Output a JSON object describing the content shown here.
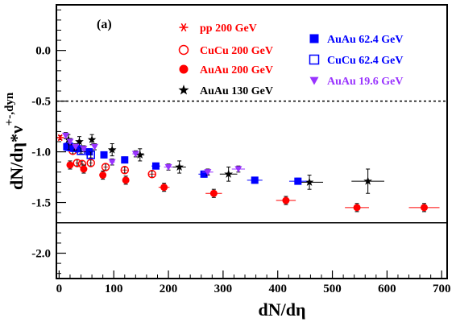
{
  "chart_data": {
    "type": "scatter",
    "panel_label": "(a)",
    "xlabel": "dN/dη",
    "ylabel_main": "dN/dη*ν",
    "ylabel_sub": "+-,dyn",
    "xlim": [
      -5,
      710
    ],
    "ylim": [
      -2.25,
      0.45
    ],
    "x_ticks": [
      0,
      100,
      200,
      300,
      400,
      500,
      600,
      700
    ],
    "x_tick_labels": [
      "0",
      "100",
      "200",
      "300",
      "400",
      "500",
      "600",
      "700"
    ],
    "y_ticks": [
      -2.0,
      -1.5,
      -1.0,
      -0.5,
      0.0
    ],
    "y_tick_labels": [
      "-2.0",
      "-1.5",
      "-1.0",
      "-0.5",
      "0.0"
    ],
    "reference_lines": [
      {
        "y": -0.5,
        "style": "dashed",
        "color": "#000000"
      },
      {
        "y": -1.7,
        "style": "solid",
        "color": "#000000"
      }
    ],
    "series": [
      {
        "name": "pp 200 GeV",
        "marker": "asterisk",
        "color": "#ff0000",
        "points": [
          {
            "x": 2,
            "y": -0.86,
            "ex": 0,
            "ey": 0.02
          }
        ]
      },
      {
        "name": "CuCu 200 GeV",
        "marker": "open-circle",
        "color": "#ff0000",
        "points": [
          {
            "x": 25,
            "y": -0.99,
            "ex": 3,
            "ey": 0.03
          },
          {
            "x": 33,
            "y": -1.11,
            "ex": 3,
            "ey": 0.03
          },
          {
            "x": 42,
            "y": -1.12,
            "ex": 3,
            "ey": 0.03
          },
          {
            "x": 58,
            "y": -1.11,
            "ex": 3,
            "ey": 0.03
          },
          {
            "x": 85,
            "y": -1.15,
            "ex": 4,
            "ey": 0.03
          },
          {
            "x": 120,
            "y": -1.18,
            "ex": 5,
            "ey": 0.03
          },
          {
            "x": 170,
            "y": -1.22,
            "ex": 6,
            "ey": 0.03
          }
        ]
      },
      {
        "name": "AuAu 200 GeV",
        "marker": "filled-circle",
        "color": "#ff0000",
        "points": [
          {
            "x": 20,
            "y": -1.13,
            "ex": 5,
            "ey": 0.04
          },
          {
            "x": 45,
            "y": -1.17,
            "ex": 5,
            "ey": 0.04
          },
          {
            "x": 80,
            "y": -1.23,
            "ex": 6,
            "ey": 0.04
          },
          {
            "x": 122,
            "y": -1.28,
            "ex": 6,
            "ey": 0.04
          },
          {
            "x": 192,
            "y": -1.35,
            "ex": 10,
            "ey": 0.04
          },
          {
            "x": 283,
            "y": -1.41,
            "ex": 15,
            "ey": 0.04
          },
          {
            "x": 415,
            "y": -1.48,
            "ex": 18,
            "ey": 0.04
          },
          {
            "x": 545,
            "y": -1.55,
            "ex": 22,
            "ey": 0.04
          },
          {
            "x": 668,
            "y": -1.55,
            "ex": 28,
            "ey": 0.04
          }
        ]
      },
      {
        "name": "AuAu 130 GeV",
        "marker": "star",
        "color": "#000000",
        "points": [
          {
            "x": 17,
            "y": -0.88,
            "ex": 4,
            "ey": 0.05
          },
          {
            "x": 37,
            "y": -0.9,
            "ex": 5,
            "ey": 0.05
          },
          {
            "x": 60,
            "y": -0.88,
            "ex": 5,
            "ey": 0.05
          },
          {
            "x": 97,
            "y": -0.98,
            "ex": 6,
            "ey": 0.06
          },
          {
            "x": 148,
            "y": -1.03,
            "ex": 8,
            "ey": 0.06
          },
          {
            "x": 220,
            "y": -1.15,
            "ex": 12,
            "ey": 0.06
          },
          {
            "x": 310,
            "y": -1.22,
            "ex": 16,
            "ey": 0.07
          },
          {
            "x": 458,
            "y": -1.3,
            "ex": 25,
            "ey": 0.07
          },
          {
            "x": 565,
            "y": -1.29,
            "ex": 30,
            "ey": 0.12
          }
        ]
      },
      {
        "name": "AuAu 62.4 GeV",
        "marker": "filled-square",
        "color": "#0000ff",
        "points": [
          {
            "x": 14,
            "y": -0.95,
            "ex": 3,
            "ey": 0.03
          },
          {
            "x": 22,
            "y": -0.96,
            "ex": 3,
            "ey": 0.03
          },
          {
            "x": 35,
            "y": -0.97,
            "ex": 4,
            "ey": 0.03
          },
          {
            "x": 55,
            "y": -1.0,
            "ex": 4,
            "ey": 0.03
          },
          {
            "x": 82,
            "y": -1.03,
            "ex": 5,
            "ey": 0.03
          },
          {
            "x": 120,
            "y": -1.08,
            "ex": 6,
            "ey": 0.03
          },
          {
            "x": 177,
            "y": -1.14,
            "ex": 8,
            "ey": 0.03
          },
          {
            "x": 265,
            "y": -1.22,
            "ex": 10,
            "ey": 0.03
          },
          {
            "x": 358,
            "y": -1.28,
            "ex": 14,
            "ey": 0.03
          },
          {
            "x": 437,
            "y": -1.29,
            "ex": 16,
            "ey": 0.03
          }
        ]
      },
      {
        "name": "CuCu 62.4 GeV",
        "marker": "open-square",
        "color": "#0000ff",
        "points": [
          {
            "x": 18,
            "y": -0.95,
            "ex": 3,
            "ey": 0.03
          },
          {
            "x": 28,
            "y": -0.96,
            "ex": 3,
            "ey": 0.03
          },
          {
            "x": 40,
            "y": -0.99,
            "ex": 3,
            "ey": 0.03
          },
          {
            "x": 58,
            "y": -1.03,
            "ex": 4,
            "ey": 0.03
          }
        ]
      },
      {
        "name": "AuAu 19.6 GeV",
        "marker": "triangle-down",
        "color": "#9933ff",
        "points": [
          {
            "x": 12,
            "y": -0.84,
            "ex": 3,
            "ey": 0.03
          },
          {
            "x": 20,
            "y": -0.9,
            "ex": 3,
            "ey": 0.03
          },
          {
            "x": 30,
            "y": -0.95,
            "ex": 3,
            "ey": 0.03
          },
          {
            "x": 45,
            "y": -0.97,
            "ex": 4,
            "ey": 0.03
          },
          {
            "x": 65,
            "y": -0.95,
            "ex": 4,
            "ey": 0.03
          },
          {
            "x": 97,
            "y": -1.1,
            "ex": 5,
            "ey": 0.03
          },
          {
            "x": 140,
            "y": -1.02,
            "ex": 6,
            "ey": 0.03
          },
          {
            "x": 200,
            "y": -1.15,
            "ex": 8,
            "ey": 0.03
          },
          {
            "x": 272,
            "y": -1.2,
            "ex": 10,
            "ey": 0.03
          },
          {
            "x": 328,
            "y": -1.17,
            "ex": 12,
            "ey": 0.03
          }
        ]
      }
    ]
  }
}
